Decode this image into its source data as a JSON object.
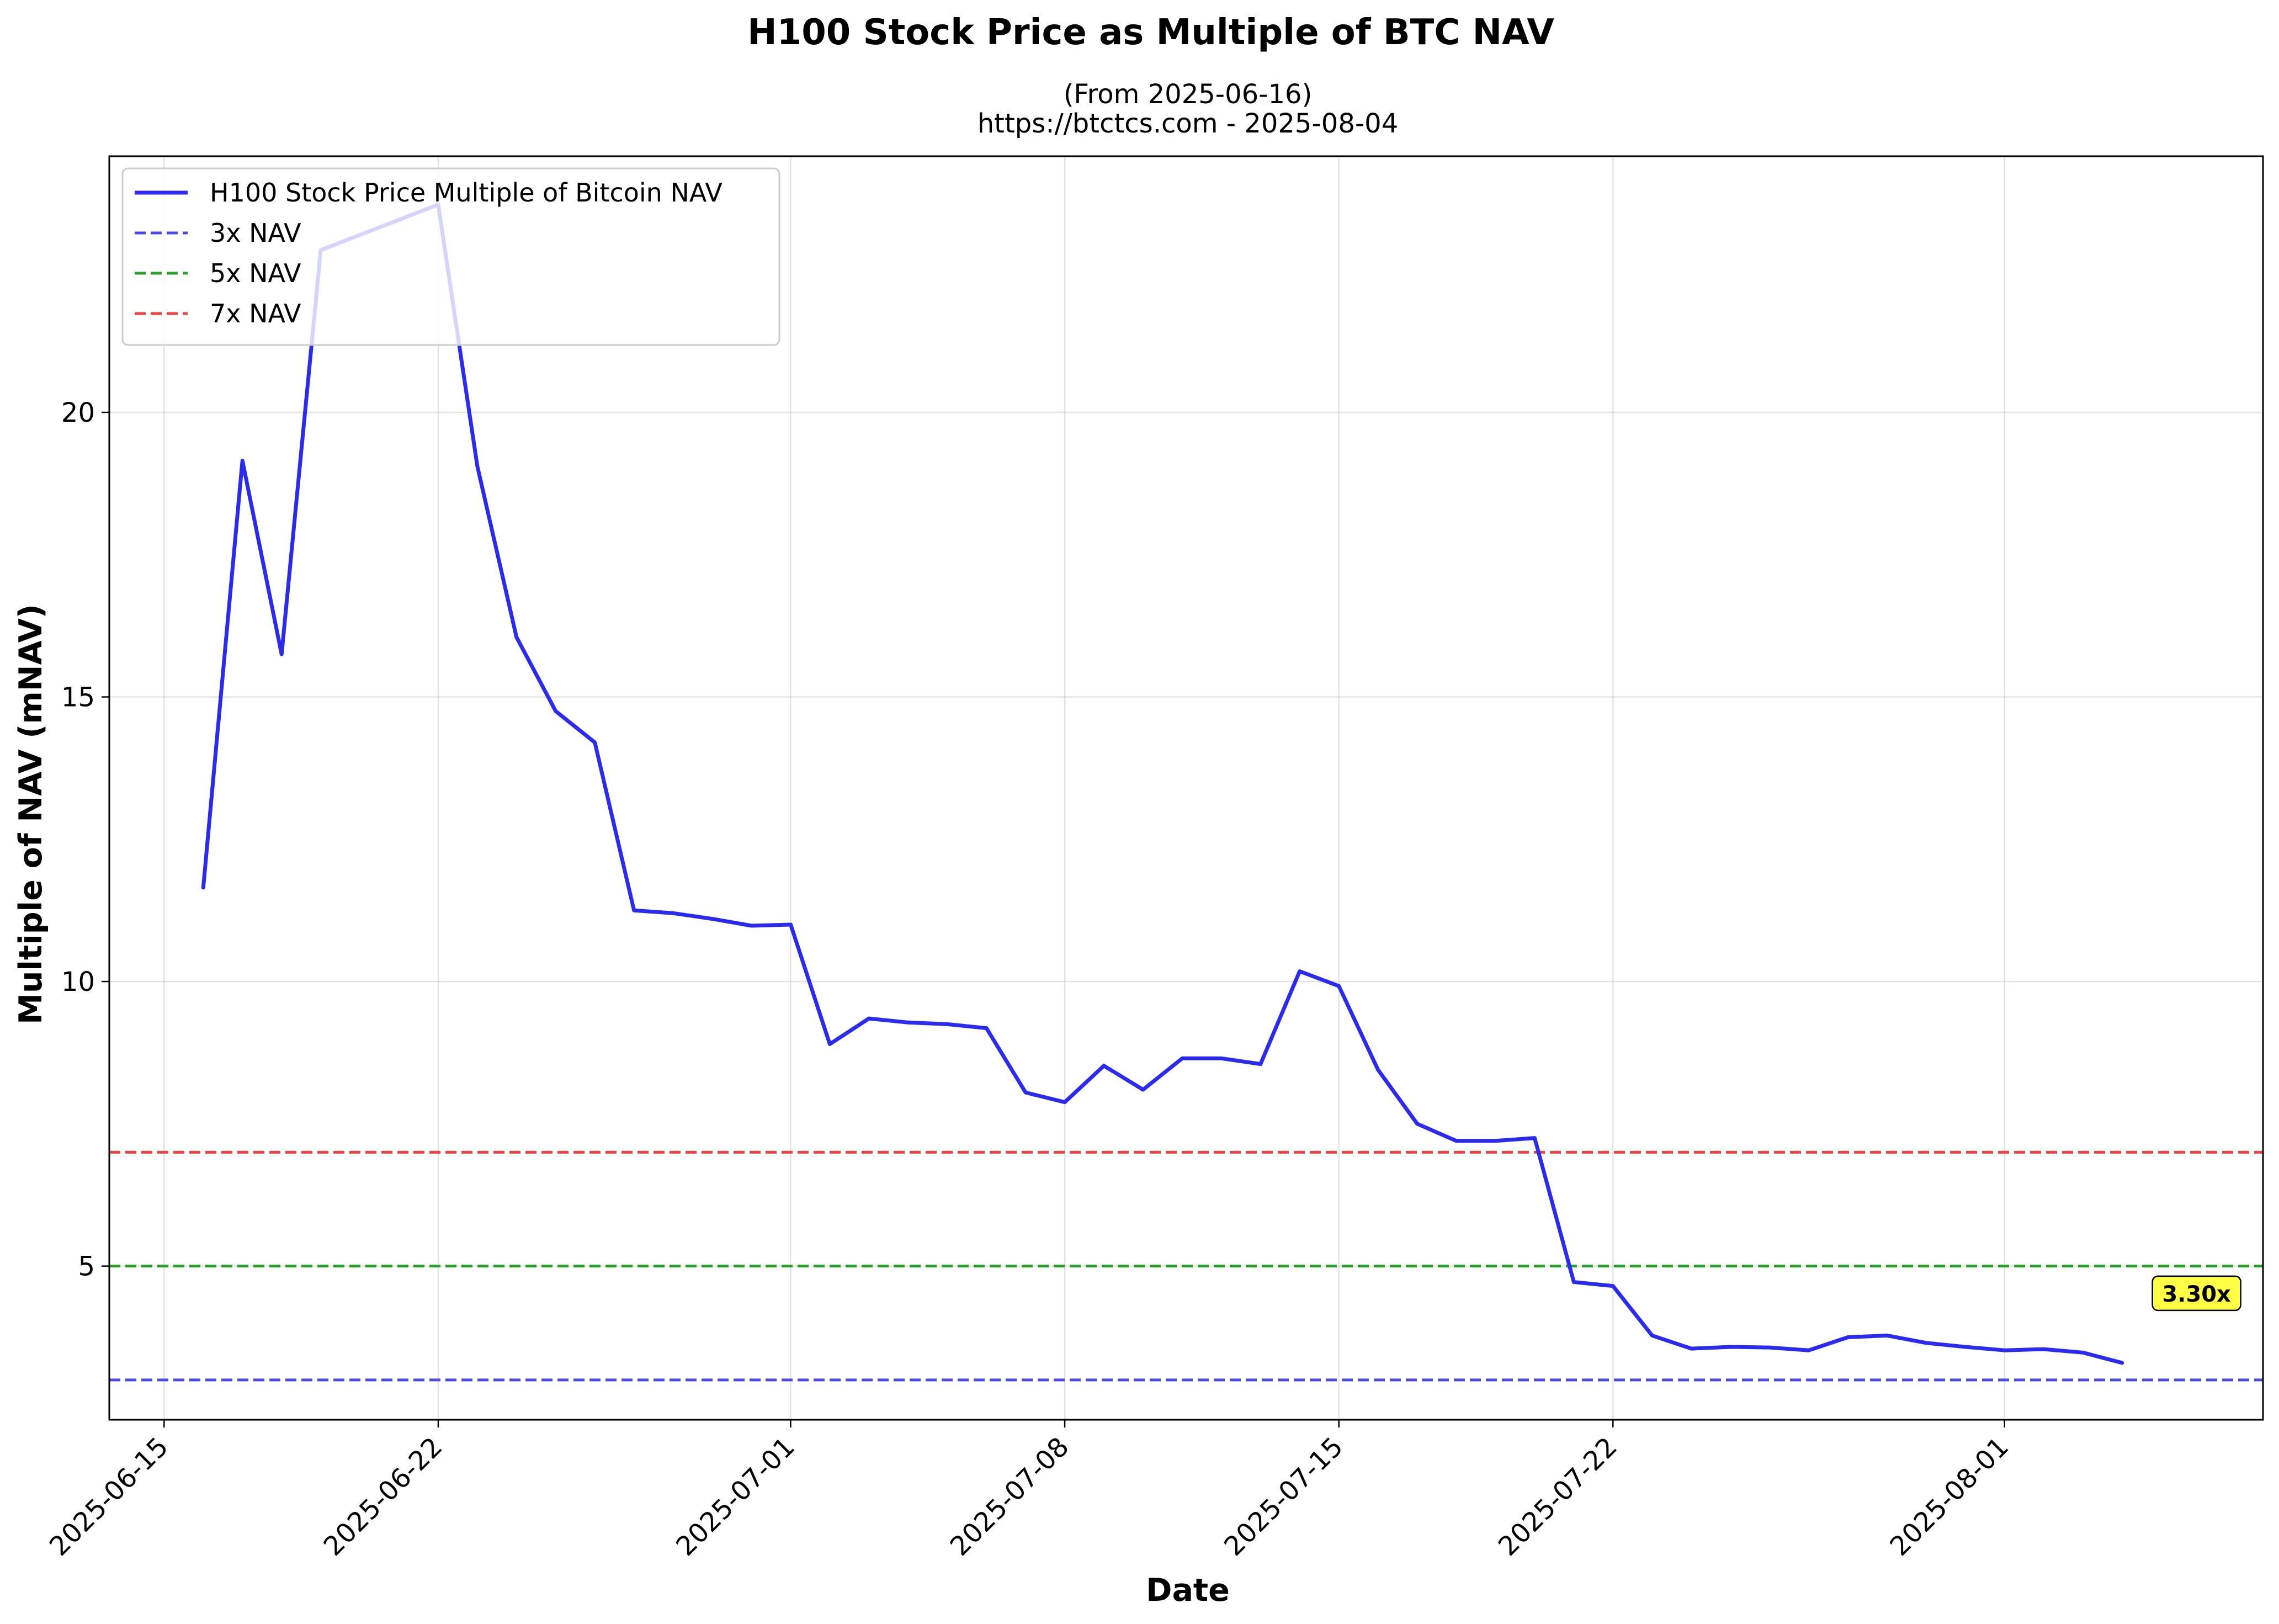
{
  "chart_data": {
    "type": "line",
    "title": "H100 Stock Price as Multiple of BTC NAV",
    "subtitle_lines": [
      "(From 2025-06-16)",
      "https://btctcs.com - 2025-08-04"
    ],
    "xlabel": "Date",
    "ylabel": "Multiple of NAV (mNAV)",
    "xlim": [
      "2025-06-13.6",
      "2025-08-07.6"
    ],
    "ylim": [
      2.3,
      24.5
    ],
    "grid": true,
    "legend_position": "upper-left",
    "x_ticks": [
      {
        "date": "2025-06-15",
        "label": "2025-06-15"
      },
      {
        "date": "2025-06-22",
        "label": "2025-06-22"
      },
      {
        "date": "2025-07-01",
        "label": "2025-07-01"
      },
      {
        "date": "2025-07-08",
        "label": "2025-07-08"
      },
      {
        "date": "2025-07-15",
        "label": "2025-07-15"
      },
      {
        "date": "2025-07-22",
        "label": "2025-07-22"
      },
      {
        "date": "2025-08-01",
        "label": "2025-08-01"
      }
    ],
    "y_ticks": [
      {
        "value": 5,
        "label": "5"
      },
      {
        "value": 10,
        "label": "10"
      },
      {
        "value": 15,
        "label": "15"
      },
      {
        "value": 20,
        "label": "20"
      }
    ],
    "series": [
      {
        "name": "H100 Stock Price Multiple of Bitcoin NAV",
        "color": "#2a2af0",
        "style": "solid",
        "x": [
          "2025-06-16",
          "2025-06-17",
          "2025-06-18",
          "2025-06-19",
          "2025-06-22",
          "2025-06-23",
          "2025-06-24",
          "2025-06-25",
          "2025-06-26",
          "2025-06-27",
          "2025-06-28",
          "2025-06-29",
          "2025-06-30",
          "2025-07-01",
          "2025-07-02",
          "2025-07-03",
          "2025-07-04",
          "2025-07-05",
          "2025-07-06",
          "2025-07-07",
          "2025-07-08",
          "2025-07-09",
          "2025-07-10",
          "2025-07-11",
          "2025-07-12",
          "2025-07-13",
          "2025-07-14",
          "2025-07-15",
          "2025-07-16",
          "2025-07-17",
          "2025-07-18",
          "2025-07-19",
          "2025-07-20",
          "2025-07-21",
          "2025-07-22",
          "2025-07-23",
          "2025-07-24",
          "2025-07-25",
          "2025-07-26",
          "2025-07-27",
          "2025-07-28",
          "2025-07-29",
          "2025-07-30",
          "2025-07-31",
          "2025-08-01",
          "2025-08-02",
          "2025-08-03",
          "2025-08-04"
        ],
        "values": [
          11.65,
          19.15,
          15.75,
          22.85,
          23.65,
          19.05,
          16.05,
          14.75,
          14.2,
          11.25,
          11.2,
          11.1,
          10.98,
          11.0,
          8.9,
          9.35,
          9.28,
          9.25,
          9.18,
          8.05,
          7.88,
          8.52,
          8.1,
          8.65,
          8.65,
          8.55,
          10.18,
          9.92,
          8.45,
          7.5,
          7.2,
          7.2,
          7.25,
          4.72,
          4.65,
          3.78,
          3.55,
          3.58,
          3.57,
          3.52,
          3.75,
          3.78,
          3.65,
          3.58,
          3.52,
          3.54,
          3.48,
          3.3
        ]
      },
      {
        "name": "3x NAV",
        "color": "#4a4ae8",
        "style": "dashed",
        "constant": 3
      },
      {
        "name": "5x NAV",
        "color": "#2ca02c",
        "style": "dashed",
        "constant": 5
      },
      {
        "name": "7x NAV",
        "color": "#f04040",
        "style": "dashed",
        "constant": 7
      }
    ],
    "annotations": [
      {
        "text": "3.30x",
        "date": "2025-08-04",
        "value": 3.3,
        "bg": "#ffff44"
      }
    ]
  }
}
